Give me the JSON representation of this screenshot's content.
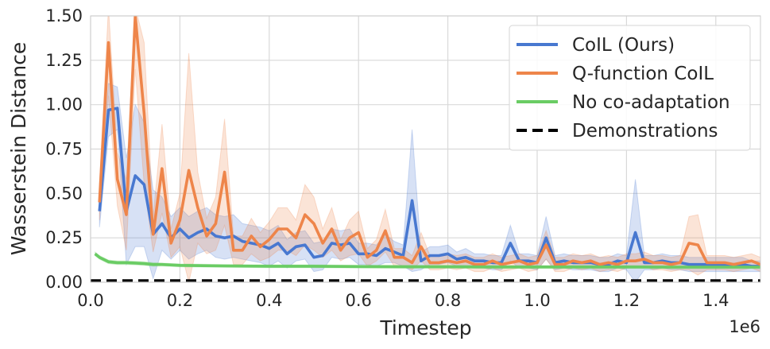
{
  "chart_data": {
    "type": "line",
    "title": "",
    "xlabel": "Timestep",
    "ylabel": "Wasserstein Distance",
    "x_offset_label": "1e6",
    "xlim": [
      0,
      1.5
    ],
    "ylim": [
      0,
      1.5
    ],
    "xticks": [
      "0.0",
      "0.2",
      "0.4",
      "0.6",
      "0.8",
      "1.0",
      "1.2",
      "1.4"
    ],
    "yticks": [
      "0.00",
      "0.25",
      "0.50",
      "0.75",
      "1.00",
      "1.25",
      "1.50"
    ],
    "grid": true,
    "legend_position": "top-right",
    "series": [
      {
        "name": "CoIL (Ours)",
        "color": "#4878d0",
        "x": [
          0.02,
          0.04,
          0.06,
          0.08,
          0.1,
          0.12,
          0.14,
          0.16,
          0.18,
          0.2,
          0.22,
          0.24,
          0.26,
          0.28,
          0.3,
          0.32,
          0.34,
          0.36,
          0.38,
          0.4,
          0.42,
          0.44,
          0.46,
          0.48,
          0.5,
          0.52,
          0.54,
          0.56,
          0.58,
          0.6,
          0.62,
          0.64,
          0.66,
          0.68,
          0.7,
          0.72,
          0.74,
          0.76,
          0.78,
          0.8,
          0.82,
          0.84,
          0.86,
          0.88,
          0.9,
          0.92,
          0.94,
          0.96,
          0.98,
          1.0,
          1.02,
          1.04,
          1.06,
          1.08,
          1.1,
          1.12,
          1.14,
          1.16,
          1.18,
          1.2,
          1.22,
          1.24,
          1.26,
          1.28,
          1.3,
          1.32,
          1.34,
          1.36,
          1.38,
          1.4,
          1.42,
          1.44,
          1.46,
          1.48,
          1.5
        ],
        "y": [
          0.4,
          0.97,
          0.98,
          0.4,
          0.6,
          0.55,
          0.27,
          0.33,
          0.25,
          0.3,
          0.25,
          0.28,
          0.3,
          0.26,
          0.25,
          0.26,
          0.23,
          0.22,
          0.21,
          0.19,
          0.22,
          0.16,
          0.2,
          0.21,
          0.14,
          0.15,
          0.22,
          0.21,
          0.22,
          0.16,
          0.16,
          0.15,
          0.19,
          0.17,
          0.15,
          0.46,
          0.12,
          0.15,
          0.15,
          0.16,
          0.13,
          0.14,
          0.12,
          0.12,
          0.11,
          0.11,
          0.22,
          0.12,
          0.12,
          0.11,
          0.25,
          0.11,
          0.12,
          0.11,
          0.11,
          0.11,
          0.1,
          0.1,
          0.12,
          0.11,
          0.28,
          0.11,
          0.11,
          0.12,
          0.11,
          0.11,
          0.1,
          0.1,
          0.1,
          0.1,
          0.1,
          0.1,
          0.1,
          0.09,
          0.09
        ],
        "band": [
          0.09,
          0.15,
          0.12,
          0.3,
          0.4,
          0.35,
          0.25,
          0.15,
          0.12,
          0.12,
          0.12,
          0.12,
          0.12,
          0.12,
          0.12,
          0.12,
          0.1,
          0.1,
          0.1,
          0.1,
          0.1,
          0.08,
          0.08,
          0.08,
          0.08,
          0.08,
          0.08,
          0.08,
          0.08,
          0.06,
          0.06,
          0.06,
          0.08,
          0.06,
          0.06,
          0.4,
          0.05,
          0.05,
          0.05,
          0.05,
          0.04,
          0.05,
          0.04,
          0.04,
          0.04,
          0.04,
          0.1,
          0.04,
          0.04,
          0.04,
          0.12,
          0.04,
          0.04,
          0.04,
          0.04,
          0.04,
          0.04,
          0.04,
          0.04,
          0.04,
          0.3,
          0.04,
          0.04,
          0.04,
          0.04,
          0.04,
          0.04,
          0.04,
          0.04,
          0.04,
          0.04,
          0.04,
          0.04,
          0.03,
          0.03
        ]
      },
      {
        "name": "Q-function CoIL",
        "color": "#ee854a",
        "x": [
          0.02,
          0.04,
          0.06,
          0.08,
          0.1,
          0.12,
          0.14,
          0.16,
          0.18,
          0.2,
          0.22,
          0.24,
          0.26,
          0.28,
          0.3,
          0.32,
          0.34,
          0.36,
          0.38,
          0.4,
          0.42,
          0.44,
          0.46,
          0.48,
          0.5,
          0.52,
          0.54,
          0.56,
          0.58,
          0.6,
          0.62,
          0.64,
          0.66,
          0.68,
          0.7,
          0.72,
          0.74,
          0.76,
          0.78,
          0.8,
          0.82,
          0.84,
          0.86,
          0.88,
          0.9,
          0.92,
          0.94,
          0.96,
          0.98,
          1.0,
          1.02,
          1.04,
          1.06,
          1.08,
          1.1,
          1.12,
          1.14,
          1.16,
          1.18,
          1.2,
          1.22,
          1.24,
          1.26,
          1.28,
          1.3,
          1.32,
          1.34,
          1.36,
          1.38,
          1.4,
          1.42,
          1.44,
          1.46,
          1.48,
          1.5
        ],
        "y": [
          0.45,
          1.35,
          0.58,
          0.38,
          1.5,
          0.95,
          0.27,
          0.64,
          0.22,
          0.35,
          0.63,
          0.42,
          0.26,
          0.33,
          0.62,
          0.18,
          0.18,
          0.26,
          0.2,
          0.24,
          0.3,
          0.3,
          0.25,
          0.38,
          0.33,
          0.22,
          0.3,
          0.18,
          0.25,
          0.28,
          0.14,
          0.18,
          0.29,
          0.14,
          0.14,
          0.11,
          0.2,
          0.11,
          0.11,
          0.12,
          0.11,
          0.12,
          0.1,
          0.1,
          0.12,
          0.1,
          0.11,
          0.12,
          0.1,
          0.11,
          0.21,
          0.1,
          0.1,
          0.12,
          0.11,
          0.12,
          0.1,
          0.11,
          0.1,
          0.12,
          0.12,
          0.13,
          0.11,
          0.11,
          0.1,
          0.11,
          0.22,
          0.21,
          0.11,
          0.11,
          0.11,
          0.1,
          0.11,
          0.12,
          0.1
        ],
        "band": [
          0.1,
          0.3,
          0.15,
          0.2,
          0.3,
          0.4,
          0.1,
          0.25,
          0.08,
          0.15,
          0.66,
          0.2,
          0.1,
          0.15,
          0.3,
          0.08,
          0.08,
          0.1,
          0.08,
          0.1,
          0.12,
          0.12,
          0.1,
          0.17,
          0.15,
          0.08,
          0.12,
          0.06,
          0.1,
          0.12,
          0.05,
          0.06,
          0.12,
          0.05,
          0.05,
          0.04,
          0.08,
          0.04,
          0.04,
          0.04,
          0.04,
          0.04,
          0.04,
          0.04,
          0.04,
          0.04,
          0.04,
          0.04,
          0.04,
          0.04,
          0.08,
          0.04,
          0.04,
          0.04,
          0.04,
          0.04,
          0.04,
          0.04,
          0.04,
          0.04,
          0.04,
          0.04,
          0.04,
          0.04,
          0.04,
          0.04,
          0.15,
          0.17,
          0.04,
          0.04,
          0.04,
          0.04,
          0.04,
          0.04,
          0.04
        ]
      },
      {
        "name": "No co-adaptation",
        "color": "#6acc64",
        "x": [
          0.01,
          0.02,
          0.04,
          0.06,
          0.08,
          0.1,
          0.12,
          0.14,
          0.16,
          0.2,
          0.3,
          0.4,
          0.5,
          0.6,
          0.7,
          0.8,
          0.9,
          1.0,
          1.1,
          1.2,
          1.3,
          1.4,
          1.5
        ],
        "y": [
          0.16,
          0.14,
          0.115,
          0.11,
          0.11,
          0.108,
          0.105,
          0.1,
          0.1,
          0.095,
          0.092,
          0.09,
          0.09,
          0.088,
          0.087,
          0.087,
          0.086,
          0.086,
          0.086,
          0.086,
          0.085,
          0.085,
          0.085
        ],
        "band": [
          0.01,
          0.01,
          0.01,
          0.01,
          0.01,
          0.01,
          0.01,
          0.01,
          0.008,
          0.008,
          0.008,
          0.008,
          0.008,
          0.008,
          0.008,
          0.008,
          0.008,
          0.008,
          0.008,
          0.008,
          0.008,
          0.008,
          0.008
        ]
      },
      {
        "name": "Demonstrations",
        "color": "#000000",
        "dashed": true,
        "x": [
          0.0,
          1.5
        ],
        "y": [
          0.01,
          0.01
        ]
      }
    ]
  }
}
